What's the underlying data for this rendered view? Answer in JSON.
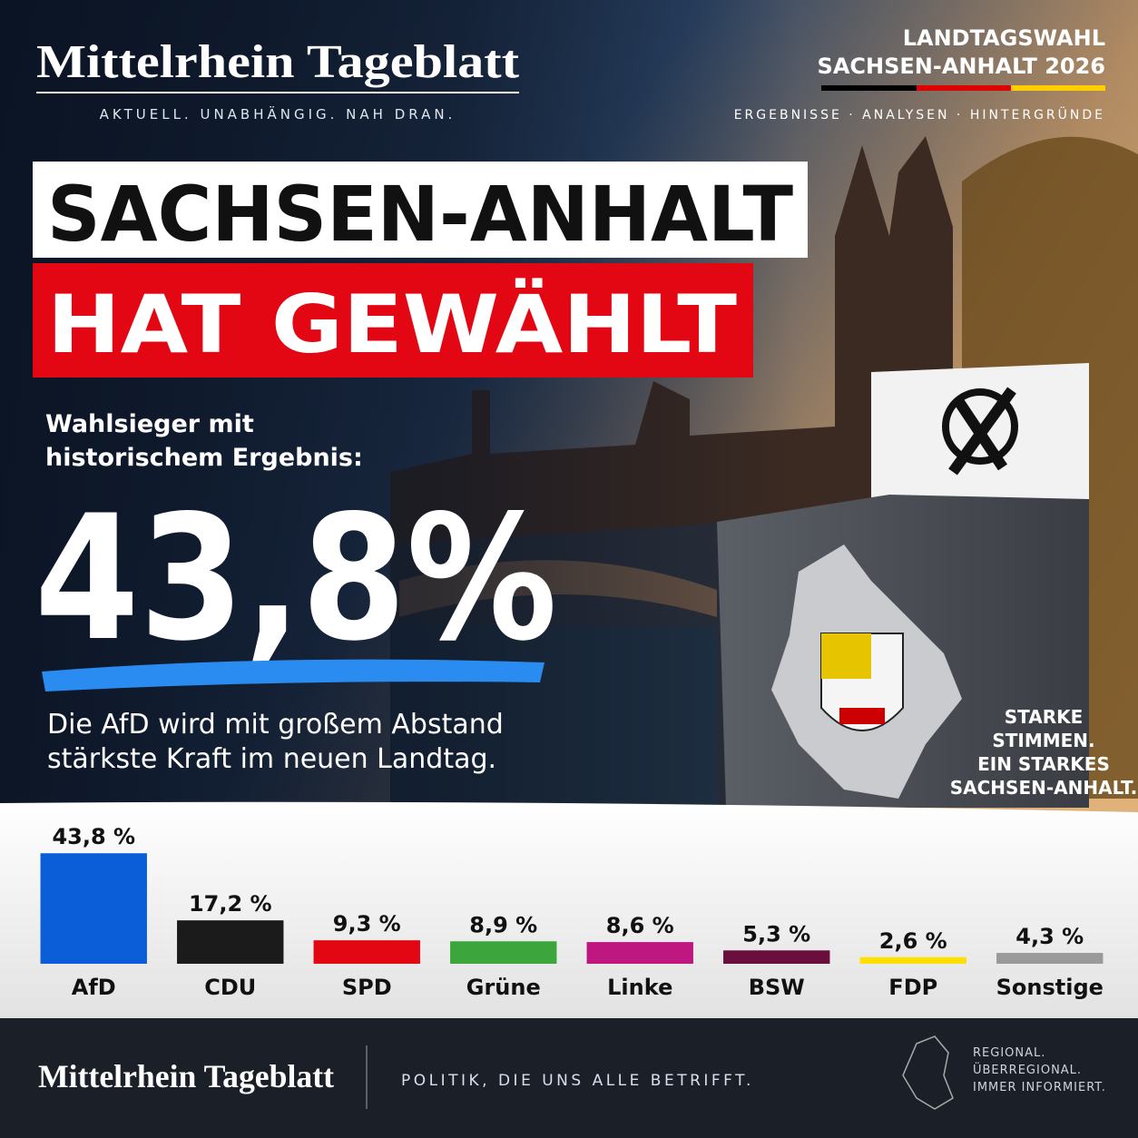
{
  "masthead": {
    "title": "Mittelrhein Tageblatt",
    "tagline": "AKTUELL. UNABHÄNGIG. NAH DRAN."
  },
  "badge": {
    "lines": [
      "LANDTAGSWAHL",
      "SACHSEN-ANHALT 2026"
    ],
    "subline": "ERGEBNISSE · ANALYSEN · HINTERGRÜNDE"
  },
  "headline": {
    "line1": "SACHSEN-ANHALT",
    "line2": "HAT GEWÄHLT"
  },
  "winner": {
    "intro": [
      "Wahlsieger mit",
      "historischem Ergebnis:"
    ],
    "big_number": "43,8%",
    "text": [
      "Die AfD wird mit großem Abstand",
      "stärkste Kraft im neuen Landtag."
    ]
  },
  "slogan": [
    "STARKE",
    "STIMMEN.",
    "EIN STARKES",
    "SACHSEN-ANHALT."
  ],
  "chart_data": {
    "type": "bar",
    "categories": [
      "AfD",
      "CDU",
      "SPD",
      "Grüne",
      "Linke",
      "BSW",
      "FDP",
      "Sonstige"
    ],
    "values": [
      43.8,
      17.2,
      9.3,
      8.9,
      8.6,
      5.3,
      2.6,
      4.3
    ],
    "value_labels": [
      "43,8 %",
      "17,2 %",
      "9,3 %",
      "8,9 %",
      "8,6 %",
      "5,3 %",
      "2,6 %",
      "4,3 %"
    ],
    "colors": [
      "#0b5ed7",
      "#1b1b1b",
      "#e30613",
      "#3ca63c",
      "#be1780",
      "#6a0f3c",
      "#ffe000",
      "#9a9a9a"
    ]
  },
  "footer": {
    "title": "Mittelrhein Tageblatt",
    "slogan": "POLITIK, DIE UNS ALLE BETRIFFT.",
    "right": [
      "REGIONAL.",
      "ÜBERREGIONAL.",
      "IMMER INFORMIERT."
    ]
  }
}
